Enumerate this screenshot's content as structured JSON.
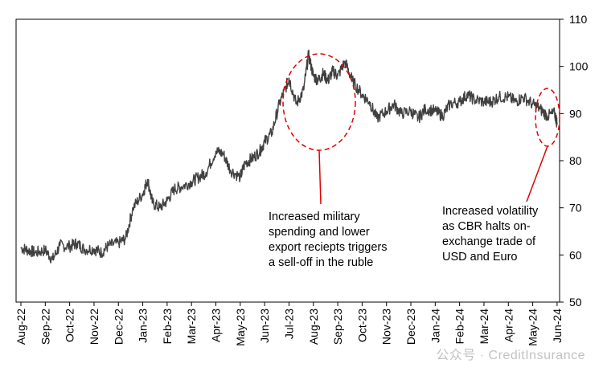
{
  "chart_data": {
    "type": "line",
    "title": "",
    "xlabel": "",
    "ylabel": "",
    "ylim": [
      50,
      110
    ],
    "yticks": [
      50,
      60,
      70,
      80,
      90,
      100,
      110
    ],
    "y_axis_side": "right",
    "grid": false,
    "legend": "none",
    "series_color": "#404040",
    "categories": [
      "Aug-22",
      "Sep-22",
      "Oct-22",
      "Nov-22",
      "Dec-22",
      "Jan-23",
      "Feb-23",
      "Mar-23",
      "Apr-23",
      "May-23",
      "Jun-23",
      "Jul-23",
      "Aug-23",
      "Sep-23",
      "Oct-23",
      "Nov-23",
      "Dec-23",
      "Jan-24",
      "Feb-24",
      "Mar-24",
      "Apr-24",
      "May-24",
      "Jun-24"
    ],
    "series": [
      {
        "x": [
          0,
          0.3,
          0.6,
          1,
          1.3,
          1.6,
          2,
          2.3,
          2.6,
          3,
          3.3,
          3.6,
          4,
          4.3,
          4.6,
          5,
          5.2,
          5.4,
          5.7,
          6,
          6.3,
          6.6,
          7,
          7.3,
          7.6,
          8,
          8.3,
          8.6,
          9,
          9.2,
          9.5,
          9.8,
          10,
          10.3,
          10.6,
          10.9,
          11,
          11.3,
          11.6,
          11.8,
          12,
          12.2,
          12.4,
          12.6,
          12.8,
          13,
          13.3,
          13.6,
          14,
          14.3,
          14.6,
          15,
          15.3,
          15.6,
          16,
          16.3,
          16.6,
          17,
          17.3,
          17.6,
          18,
          18.3,
          18.6,
          19,
          19.3,
          19.6,
          20,
          20.3,
          20.6,
          21,
          21.3,
          21.6,
          21.9,
          22
        ],
        "values": [
          61.5,
          61,
          60.5,
          61,
          59,
          62,
          61.8,
          62.5,
          61.2,
          61.3,
          60.5,
          62,
          62.5,
          63.5,
          70,
          73,
          76,
          71,
          70,
          71.5,
          74,
          74.5,
          75.5,
          76.5,
          77.5,
          82,
          81.5,
          78,
          76.5,
          79.5,
          80.5,
          82,
          84,
          86,
          92,
          96,
          97.5,
          92,
          95,
          102.5,
          98,
          97,
          98.5,
          97,
          99,
          98,
          101,
          97,
          94,
          92.5,
          89,
          90.5,
          92,
          90,
          90.5,
          89,
          91,
          90.5,
          89.5,
          92,
          92.5,
          94,
          93,
          92.5,
          92.5,
          93.5,
          93.5,
          92.5,
          93.5,
          92,
          91,
          89.5,
          90,
          88
        ]
      }
    ],
    "annotations": [
      {
        "lines": [
          "Increased military",
          "spending and lower",
          "export reciepts triggers",
          "a sell-off in the ruble"
        ],
        "color": "#e00000"
      },
      {
        "lines": [
          "Increased volatility",
          "as CBR  halts on-",
          "exchange trade of",
          "USD  and Euro"
        ],
        "color": "#e00000"
      }
    ]
  },
  "watermark": "公众号 · CreditInsurance"
}
